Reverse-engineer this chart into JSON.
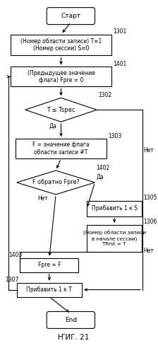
{
  "title": "ҤИГ. 21",
  "bg_color": "#ffffff",
  "start_label": "Старт",
  "end_label": "End",
  "n1301_label": "(Номер области записи) Т=1\n(Номер сессии) S=0",
  "n1401_label": "(Предыдущее значение\nфлага) Fpre = 0",
  "n1302_label": "T ≤ Tspec",
  "n1303_label": "F = значение флага\nобласти записи #Т",
  "n1402_label": "F обратно Fpre?",
  "n1305_label": "Прибавить 1 к S",
  "n1306_label": "(Номер области записи\nв начале сессии)\nTfirst = T",
  "n1403_label": "Fpre = F",
  "n1307_label": "Прибавить 1 к Т",
  "da": "Да",
  "net": "Нет"
}
